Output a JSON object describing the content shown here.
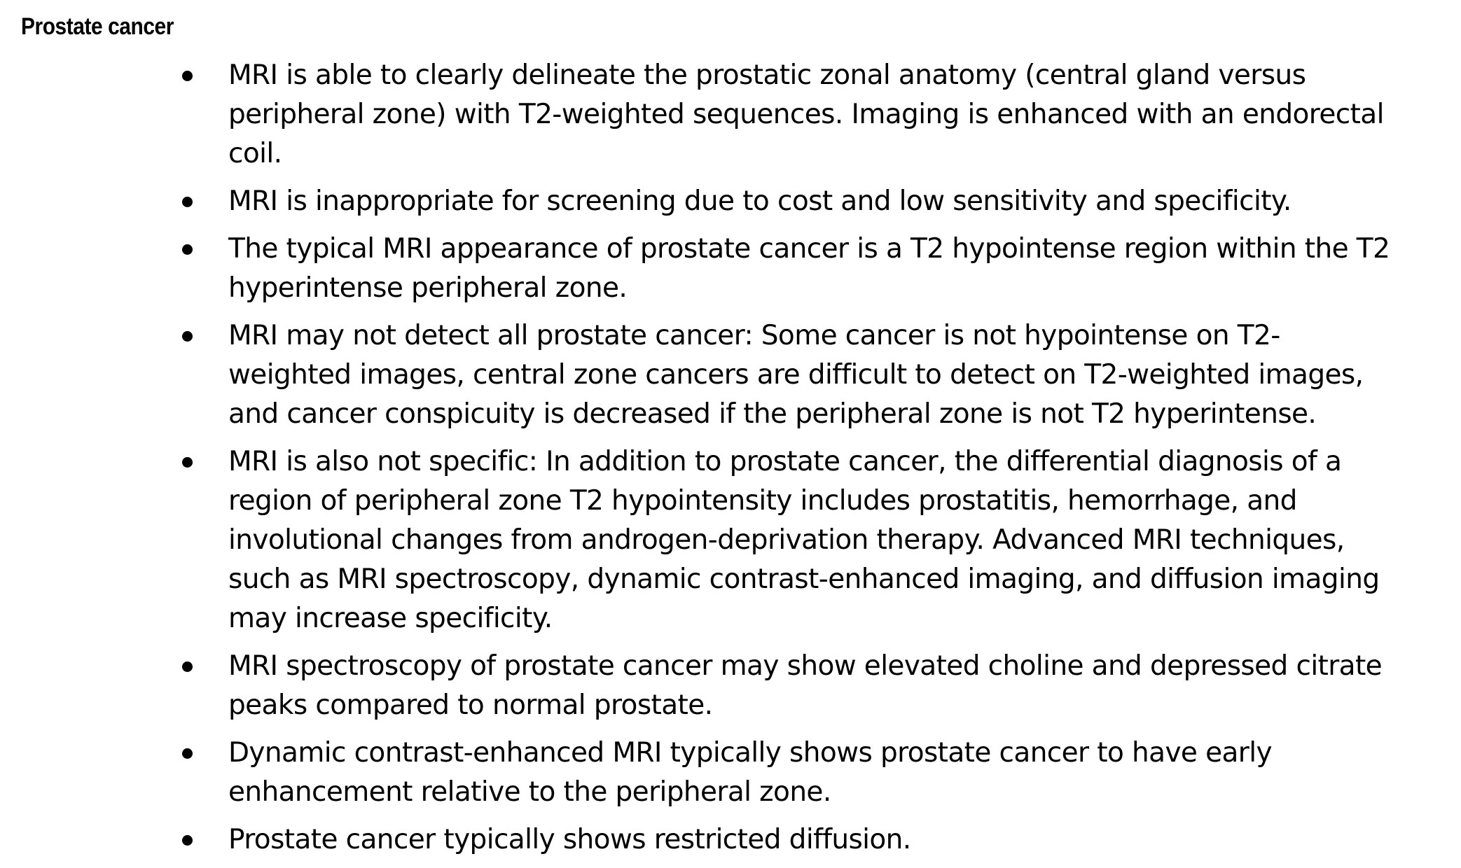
{
  "document": {
    "heading": "Prostate cancer",
    "bullets": [
      "MRI is able to clearly delineate the prostatic zonal anatomy (central gland versus peripheral zone) with T2-weighted sequences. Imaging is enhanced with an endorectal coil.",
      "MRI is inappropriate for screening due to cost and low sensitivity and specificity.",
      "The typical MRI appearance of prostate cancer is a T2 hypointense region within the T2 hyperintense peripheral zone.",
      "MRI may not detect all prostate cancer: Some cancer is not hypointense on T2-weighted images, central zone cancers are difficult to detect on T2-weighted images, and cancer conspicuity is decreased if the peripheral zone is not T2 hyperintense.",
      "MRI is also not specific: In addition to prostate cancer, the differential diagnosis of a region of peripheral zone T2 hypointensity includes prostatitis, hemorrhage, and involutional changes from androgen-deprivation therapy. Advanced MRI techniques, such as MRI spectroscopy, dynamic contrast-enhanced imaging, and diffusion imaging may increase specificity.",
      "MRI spectroscopy of prostate cancer may show elevated choline and depressed citrate peaks compared to normal prostate.",
      "Dynamic contrast-enhanced MRI typically shows prostate cancer to have early enhancement relative to the peripheral zone.",
      "Prostate cancer typically shows restricted diffusion."
    ]
  }
}
